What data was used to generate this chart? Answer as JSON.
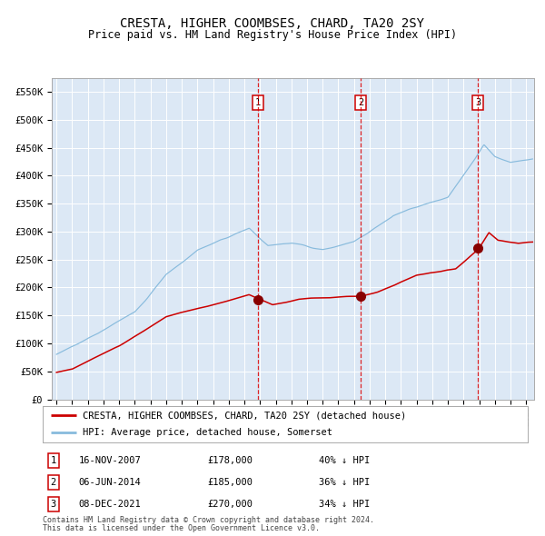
{
  "title": "CRESTA, HIGHER COOMBSES, CHARD, TA20 2SY",
  "subtitle": "Price paid vs. HM Land Registry's House Price Index (HPI)",
  "title_fontsize": 10,
  "subtitle_fontsize": 8.5,
  "ylim": [
    0,
    575000
  ],
  "yticks": [
    0,
    50000,
    100000,
    150000,
    200000,
    250000,
    300000,
    350000,
    400000,
    450000,
    500000,
    550000
  ],
  "ytick_labels": [
    "£0",
    "£50K",
    "£100K",
    "£150K",
    "£200K",
    "£250K",
    "£300K",
    "£350K",
    "£400K",
    "£450K",
    "£500K",
    "£550K"
  ],
  "background_color": "#ffffff",
  "plot_bg_color": "#dce8f5",
  "grid_color": "#ffffff",
  "sale_color": "#cc0000",
  "hpi_color": "#88bbdd",
  "sale_label": "CRESTA, HIGHER COOMBSES, CHARD, TA20 2SY (detached house)",
  "hpi_label": "HPI: Average price, detached house, Somerset",
  "transactions": [
    {
      "num": 1,
      "date": "16-NOV-2007",
      "price": 178000,
      "pct": "40%",
      "year": 2007.87
    },
    {
      "num": 2,
      "date": "06-JUN-2014",
      "price": 185000,
      "pct": "36%",
      "year": 2014.43
    },
    {
      "num": 3,
      "date": "08-DEC-2021",
      "price": 270000,
      "pct": "34%",
      "year": 2021.93
    }
  ],
  "footnote1": "Contains HM Land Registry data © Crown copyright and database right 2024.",
  "footnote2": "This data is licensed under the Open Government Licence v3.0.",
  "marker_box_color": "#880000",
  "xlim_left": 1994.7,
  "xlim_right": 2025.5
}
